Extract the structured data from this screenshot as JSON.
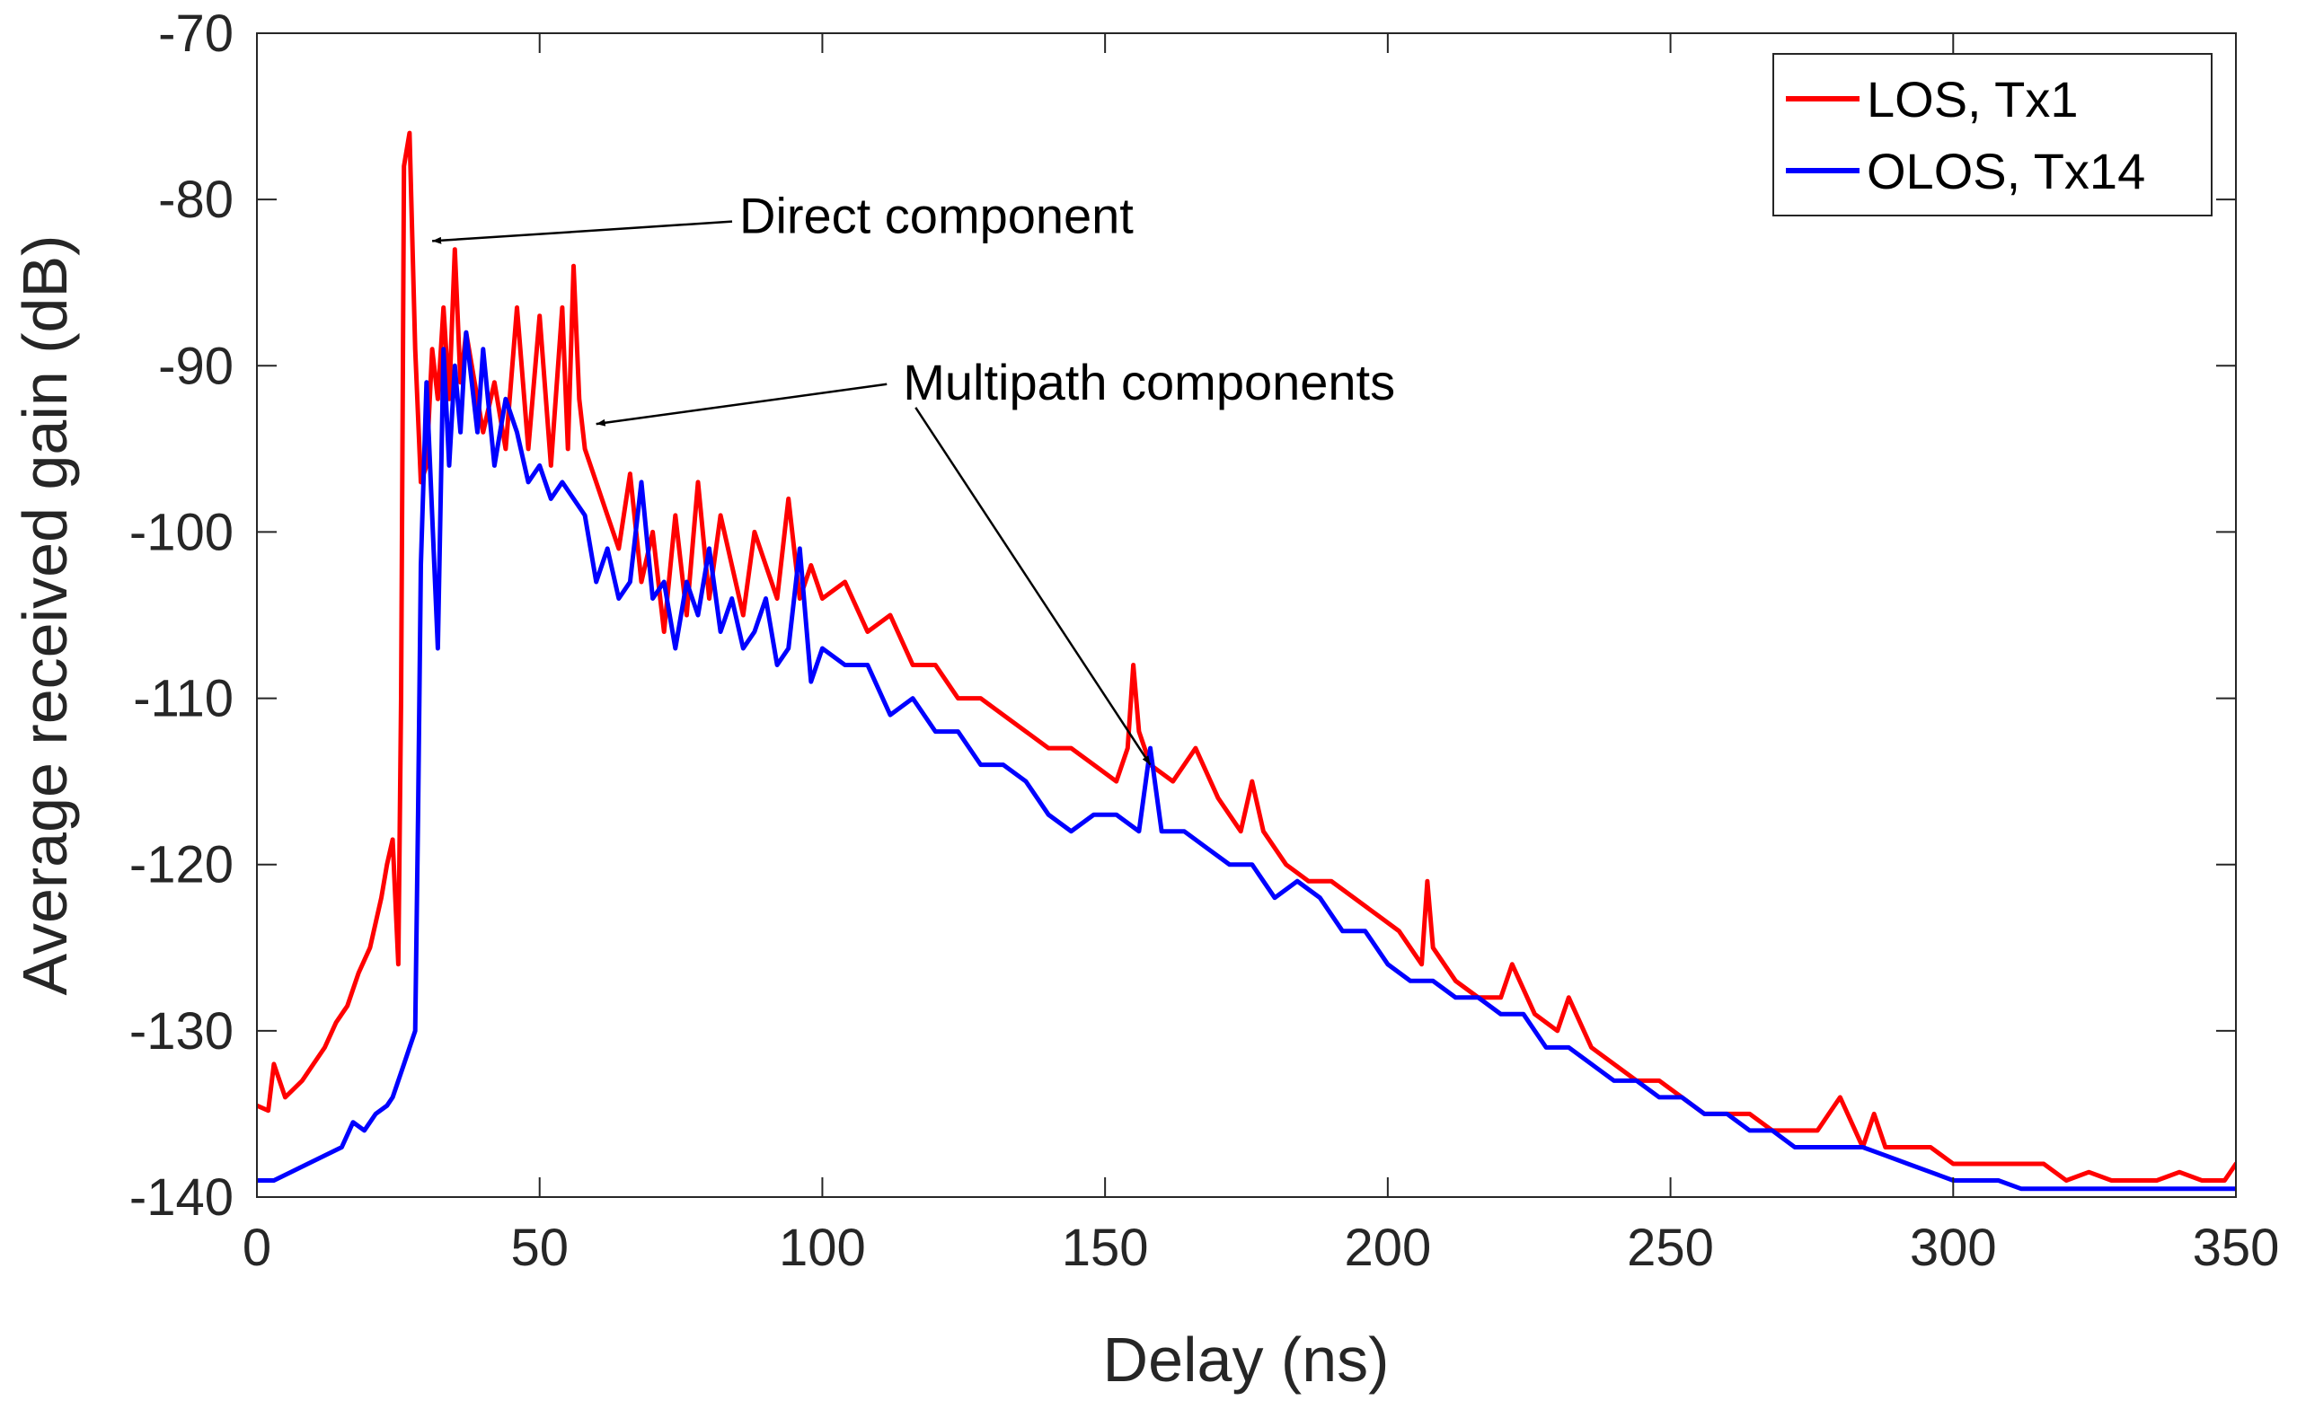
{
  "chart_data": {
    "type": "line",
    "title": "",
    "xlabel": "Delay (ns)",
    "ylabel": "Average received gain (dB)",
    "xlim": [
      0,
      350
    ],
    "ylim": [
      -140,
      -70
    ],
    "xticks": [
      0,
      50,
      100,
      150,
      200,
      250,
      300,
      350
    ],
    "yticks": [
      -140,
      -130,
      -120,
      -110,
      -100,
      -90,
      -80,
      -70
    ],
    "grid": false,
    "legend_position": "top-right",
    "series": [
      {
        "name": "LOS, Tx1",
        "color": "#ff0000",
        "x": [
          0,
          2,
          3,
          5,
          8,
          10,
          12,
          14,
          16,
          18,
          20,
          22,
          23,
          24,
          25,
          25.5,
          26,
          27,
          28,
          29,
          30,
          31,
          32,
          33,
          34,
          35,
          36,
          37,
          38,
          40,
          42,
          44,
          46,
          48,
          50,
          52,
          54,
          55,
          56,
          57,
          58,
          60,
          62,
          64,
          66,
          68,
          70,
          72,
          74,
          76,
          78,
          80,
          82,
          84,
          86,
          88,
          90,
          92,
          94,
          96,
          98,
          100,
          104,
          108,
          112,
          116,
          120,
          124,
          128,
          132,
          136,
          140,
          144,
          148,
          152,
          154,
          155,
          156,
          158,
          162,
          166,
          170,
          174,
          176,
          178,
          182,
          186,
          190,
          194,
          198,
          202,
          206,
          207,
          208,
          212,
          216,
          220,
          222,
          226,
          230,
          232,
          236,
          240,
          244,
          248,
          252,
          256,
          260,
          264,
          268,
          272,
          276,
          278,
          280,
          284,
          286,
          288,
          292,
          296,
          300,
          304,
          308,
          312,
          316,
          320,
          324,
          328,
          332,
          336,
          340,
          344,
          348,
          350
        ],
        "y": [
          -134.5,
          -134.8,
          -132,
          -134,
          -133,
          -132,
          -131,
          -129.5,
          -128.5,
          -126.5,
          -125,
          -122,
          -120,
          -118.5,
          -126,
          -110,
          -78,
          -76,
          -89,
          -97,
          -96,
          -89,
          -92,
          -86.5,
          -92,
          -83,
          -91,
          -88,
          -90,
          -94,
          -91,
          -95,
          -86.5,
          -95,
          -87,
          -96,
          -86.5,
          -95,
          -84,
          -92,
          -95,
          -97,
          -99,
          -101,
          -96.5,
          -103,
          -100,
          -106,
          -99,
          -105,
          -97,
          -104,
          -99,
          -102,
          -105,
          -100,
          -102,
          -104,
          -98,
          -104,
          -102,
          -104,
          -103,
          -106,
          -105,
          -108,
          -108,
          -110,
          -110,
          -111,
          -112,
          -113,
          -113,
          -114,
          -115,
          -113,
          -108,
          -112,
          -114,
          -115,
          -113,
          -116,
          -118,
          -115,
          -118,
          -120,
          -121,
          -121,
          -122,
          -123,
          -124,
          -126,
          -121,
          -125,
          -127,
          -128,
          -128,
          -126,
          -129,
          -130,
          -128,
          -131,
          -132,
          -133,
          -133,
          -134,
          -135,
          -135,
          -135,
          -136,
          -136,
          -136,
          -135,
          -134,
          -137,
          -135,
          -137,
          -137,
          -137,
          -138,
          -138,
          -138,
          -138,
          -138,
          -139,
          -138.5,
          -139,
          -139,
          -139,
          -138.5,
          -139,
          -139,
          -138
        ]
      },
      {
        "name": "OLOS, Tx14",
        "color": "#0000ff",
        "x": [
          0,
          3,
          6,
          9,
          12,
          15,
          17,
          19,
          21,
          23,
          24,
          25,
          26,
          27,
          28,
          28.5,
          29,
          30,
          31,
          32,
          33,
          34,
          35,
          36,
          37,
          38,
          39,
          40,
          42,
          44,
          46,
          48,
          50,
          52,
          54,
          56,
          58,
          60,
          62,
          64,
          66,
          68,
          70,
          72,
          74,
          76,
          78,
          80,
          82,
          84,
          86,
          88,
          90,
          92,
          94,
          96,
          98,
          100,
          104,
          108,
          112,
          116,
          120,
          124,
          128,
          132,
          136,
          140,
          144,
          148,
          152,
          156,
          158,
          160,
          164,
          168,
          172,
          176,
          180,
          184,
          188,
          192,
          196,
          200,
          204,
          208,
          212,
          216,
          220,
          224,
          228,
          232,
          236,
          240,
          244,
          248,
          252,
          256,
          260,
          264,
          268,
          272,
          276,
          280,
          284,
          288,
          292,
          296,
          300,
          304,
          308,
          312,
          316,
          320,
          324,
          328,
          332,
          336,
          340,
          344,
          348,
          350
        ],
        "y": [
          -139,
          -139,
          -138.5,
          -138,
          -137.5,
          -137,
          -135.5,
          -136,
          -135,
          -134.5,
          -134,
          -133,
          -132,
          -131,
          -130,
          -117,
          -102,
          -91,
          -99,
          -107,
          -89,
          -96,
          -90,
          -94,
          -88,
          -91,
          -94,
          -89,
          -96,
          -92,
          -94,
          -97,
          -96,
          -98,
          -97,
          -98,
          -99,
          -103,
          -101,
          -104,
          -103,
          -97,
          -104,
          -103,
          -107,
          -103,
          -105,
          -101,
          -106,
          -104,
          -107,
          -106,
          -104,
          -108,
          -107,
          -101,
          -109,
          -107,
          -108,
          -108,
          -111,
          -110,
          -112,
          -112,
          -114,
          -114,
          -115,
          -117,
          -118,
          -117,
          -117,
          -118,
          -113,
          -118,
          -118,
          -119,
          -120,
          -120,
          -122,
          -121,
          -122,
          -124,
          -124,
          -126,
          -127,
          -127,
          -128,
          -128,
          -129,
          -129,
          -131,
          -131,
          -132,
          -133,
          -133,
          -134,
          -134,
          -135,
          -135,
          -136,
          -136,
          -137,
          -137,
          -137,
          -137,
          -137.5,
          -138,
          -138.5,
          -139,
          -139,
          -139,
          -139.5,
          -139.5,
          -139.5,
          -139.5,
          -139.5,
          -139.5,
          -139.5,
          -139.5,
          -139.5,
          -139.5,
          -139.5
        ]
      }
    ],
    "annotations": [
      {
        "text": "Direct component",
        "tail": [
          85,
          -81
        ],
        "head": [
          31,
          -82.5
        ]
      },
      {
        "text": "Multipath components",
        "arrow_from": [
          113,
          -91
        ],
        "arrows_to": [
          [
            60,
            -93.5
          ],
          [
            158,
            -114
          ]
        ]
      }
    ]
  }
}
